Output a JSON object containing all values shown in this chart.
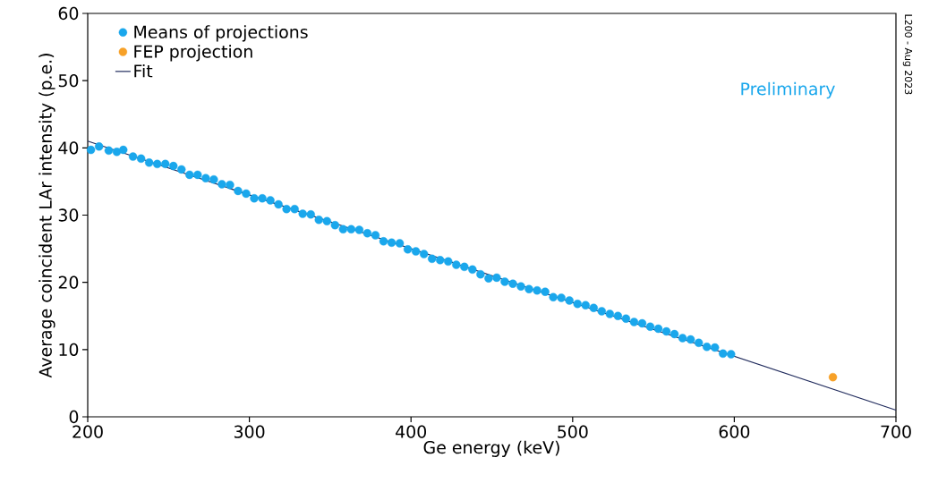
{
  "chart_data": {
    "type": "scatter",
    "xlabel": "Ge energy (keV)",
    "ylabel": "Average coincident LAr intensity (p.e.)",
    "xlim": [
      200,
      700
    ],
    "ylim": [
      0,
      60
    ],
    "xticks": [
      200,
      300,
      400,
      500,
      600,
      700
    ],
    "yticks": [
      0,
      10,
      20,
      30,
      40,
      50,
      60
    ],
    "grid": false,
    "legend": "top left",
    "series": [
      {
        "name": "Means of projections",
        "type": "scatter",
        "marker": "circle",
        "color": "#1aa7ec",
        "x": [
          202,
          207,
          213,
          218,
          222,
          228,
          233,
          238,
          243,
          248,
          253,
          258,
          263,
          268,
          273,
          278,
          283,
          288,
          293,
          298,
          303,
          308,
          313,
          318,
          323,
          328,
          333,
          338,
          343,
          348,
          353,
          358,
          363,
          368,
          373,
          378,
          383,
          388,
          393,
          398,
          403,
          408,
          413,
          418,
          423,
          428,
          433,
          438,
          443,
          448,
          453,
          458,
          463,
          468,
          473,
          478,
          483,
          488,
          493,
          498,
          503,
          508,
          513,
          518,
          523,
          528,
          533,
          538,
          543,
          548,
          553,
          558,
          563,
          568,
          573,
          578,
          583,
          588,
          593,
          598
        ],
        "values": [
          39.7,
          40.2,
          39.6,
          39.4,
          39.7,
          38.7,
          38.4,
          37.8,
          37.6,
          37.6,
          37.3,
          36.8,
          36.0,
          36.0,
          35.5,
          35.3,
          34.6,
          34.5,
          33.6,
          33.2,
          32.5,
          32.5,
          32.2,
          31.6,
          30.9,
          30.9,
          30.2,
          30.1,
          29.3,
          29.1,
          28.5,
          27.9,
          27.9,
          27.8,
          27.3,
          27.0,
          26.1,
          25.9,
          25.8,
          24.9,
          24.6,
          24.2,
          23.5,
          23.3,
          23.1,
          22.6,
          22.3,
          21.9,
          21.2,
          20.6,
          20.7,
          20.1,
          19.8,
          19.4,
          19.0,
          18.8,
          18.6,
          17.8,
          17.7,
          17.3,
          16.8,
          16.6,
          16.2,
          15.7,
          15.3,
          15.0,
          14.6,
          14.1,
          13.9,
          13.4,
          13.1,
          12.7,
          12.3,
          11.7,
          11.5,
          11.0,
          10.4,
          10.3,
          9.4,
          9.3
        ]
      },
      {
        "name": "FEP projection",
        "type": "scatter",
        "marker": "circle",
        "color": "#f7a128",
        "x": [
          661
        ],
        "values": [
          5.9
        ]
      },
      {
        "name": "Fit",
        "type": "line",
        "marker": "none",
        "color": "#1f2a5c",
        "x": [
          200,
          700
        ],
        "values": [
          41.0,
          1.0
        ]
      }
    ],
    "annotations": [
      "Preliminary",
      "L200 - Aug 2023"
    ]
  }
}
